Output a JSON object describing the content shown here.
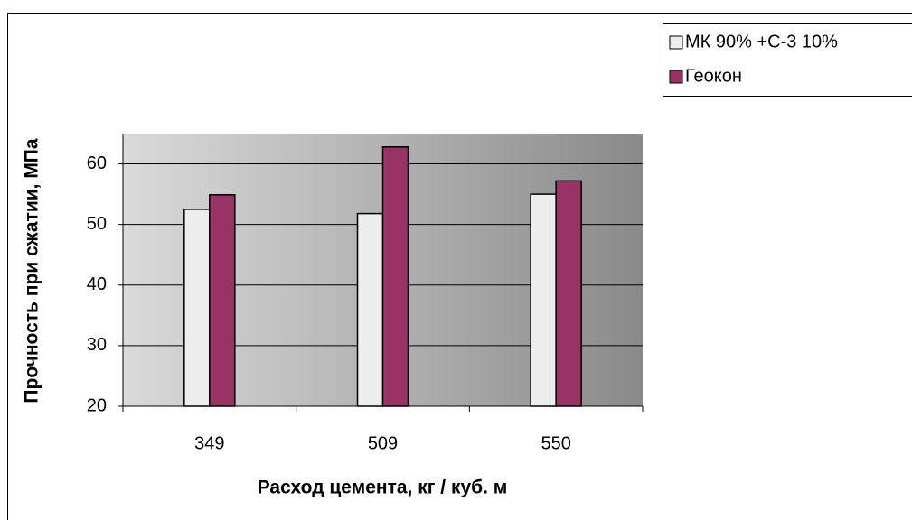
{
  "chart_data": {
    "type": "bar",
    "xlabel": "Расход цемента, кг / куб. м",
    "ylabel": "Прочность при сжатии, МПа",
    "categories": [
      "349",
      "509",
      "550"
    ],
    "series": [
      {
        "name": "МК 90% +С-3 10%",
        "color": "#ededed",
        "values": [
          52.5,
          51.8,
          55
        ]
      },
      {
        "name": "Геокон",
        "color": "#993366",
        "values": [
          54.9,
          62.8,
          57.2
        ]
      }
    ],
    "ylim": [
      20,
      65
    ],
    "yticks": [
      20,
      30,
      40,
      50,
      60
    ],
    "grid": true
  }
}
